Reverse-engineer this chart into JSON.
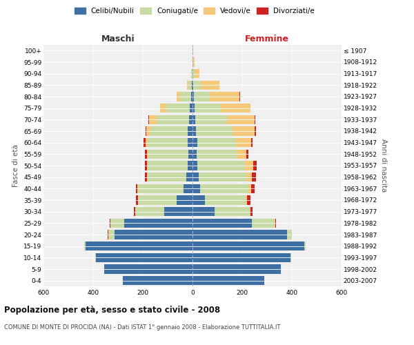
{
  "age_groups": [
    "0-4",
    "5-9",
    "10-14",
    "15-19",
    "20-24",
    "25-29",
    "30-34",
    "35-39",
    "40-44",
    "45-49",
    "50-54",
    "55-59",
    "60-64",
    "65-69",
    "70-74",
    "75-79",
    "80-84",
    "85-89",
    "90-94",
    "95-99",
    "100+"
  ],
  "birth_years": [
    "2003-2007",
    "1998-2002",
    "1993-1997",
    "1988-1992",
    "1983-1987",
    "1978-1982",
    "1973-1977",
    "1968-1972",
    "1963-1967",
    "1958-1962",
    "1953-1957",
    "1948-1952",
    "1943-1947",
    "1938-1942",
    "1933-1937",
    "1928-1932",
    "1923-1927",
    "1918-1922",
    "1913-1917",
    "1908-1912",
    "≤ 1907"
  ],
  "maschi": {
    "celibe": [
      280,
      355,
      390,
      430,
      315,
      275,
      115,
      65,
      35,
      25,
      20,
      18,
      20,
      20,
      15,
      10,
      5,
      2,
      1,
      0,
      0
    ],
    "coniugato": [
      0,
      0,
      2,
      5,
      25,
      55,
      115,
      155,
      185,
      155,
      160,
      160,
      160,
      150,
      130,
      95,
      45,
      15,
      4,
      1,
      0
    ],
    "vedovo": [
      0,
      0,
      0,
      0,
      0,
      0,
      0,
      0,
      1,
      2,
      3,
      5,
      10,
      15,
      30,
      25,
      15,
      5,
      1,
      0,
      0
    ],
    "divorziato": [
      0,
      0,
      0,
      0,
      1,
      3,
      5,
      8,
      8,
      10,
      10,
      8,
      8,
      5,
      3,
      1,
      0,
      0,
      0,
      0,
      0
    ]
  },
  "femmine": {
    "nubile": [
      290,
      355,
      395,
      450,
      380,
      240,
      90,
      50,
      30,
      25,
      20,
      18,
      20,
      15,
      10,
      8,
      5,
      3,
      1,
      0,
      0
    ],
    "coniugata": [
      0,
      0,
      2,
      5,
      20,
      90,
      140,
      165,
      195,
      195,
      190,
      160,
      155,
      145,
      130,
      105,
      65,
      30,
      8,
      2,
      1
    ],
    "vedova": [
      0,
      0,
      0,
      0,
      0,
      2,
      3,
      5,
      10,
      20,
      35,
      40,
      60,
      90,
      110,
      120,
      120,
      75,
      20,
      5,
      2
    ],
    "divorziata": [
      0,
      0,
      0,
      0,
      1,
      4,
      8,
      12,
      15,
      15,
      12,
      8,
      8,
      5,
      3,
      1,
      1,
      0,
      0,
      0,
      0
    ]
  },
  "colors": {
    "celibe": "#3d6fa5",
    "coniugato": "#c8dba5",
    "vedovo": "#f5c97a",
    "divorziato": "#cc2222"
  },
  "legend_labels": [
    "Celibi/Nubili",
    "Coniugati/e",
    "Vedovi/e",
    "Divorziati/e"
  ],
  "label_maschi": "Maschi",
  "label_femmine": "Femmine",
  "ylabel_left": "Fasce di età",
  "ylabel_right": "Anni di nascita",
  "title": "Popolazione per età, sesso e stato civile - 2008",
  "subtitle": "COMUNE DI MONTE DI PROCIDA (NA) - Dati ISTAT 1° gennaio 2008 - Elaborazione TUTTITALIA.IT",
  "xlim": 600,
  "bg_color": "#ffffff",
  "plot_bg": "#f0f0f0",
  "grid_color": "#cccccc"
}
